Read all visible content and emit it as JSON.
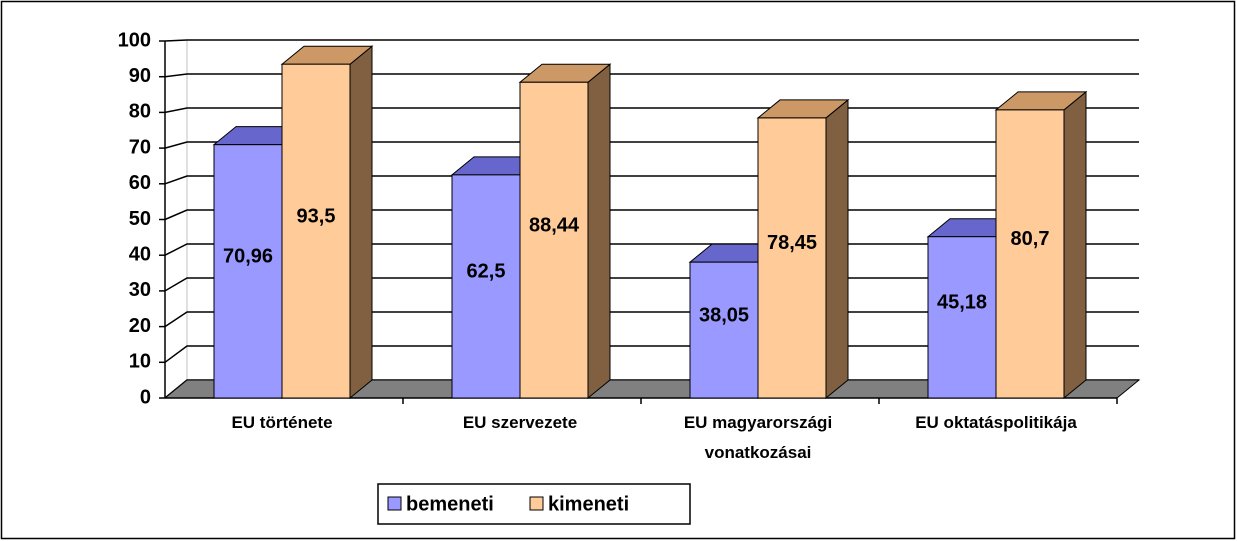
{
  "chart_data": {
    "type": "bar3d",
    "categories": [
      "EU története",
      "EU szervezete",
      "EU magyarországi vonatkozásai",
      "EU oktatáspolitikája"
    ],
    "series": [
      {
        "name": "bemeneti",
        "color": "#9999ff",
        "values": [
          70.96,
          62.5,
          38.05,
          45.18
        ],
        "value_labels": [
          "70,96",
          "62,5",
          "38,05",
          "45,18"
        ]
      },
      {
        "name": "kimeneti",
        "color": "#ffcc99",
        "values": [
          93.5,
          88.44,
          78.45,
          80.7
        ],
        "value_labels": [
          "93,5",
          "88,44",
          "78,45",
          "80,7"
        ]
      }
    ],
    "ylim": [
      0,
      100
    ],
    "yticks": [
      0,
      10,
      20,
      30,
      40,
      50,
      60,
      70,
      80,
      90,
      100
    ],
    "grid": true,
    "legend": "bottom"
  }
}
